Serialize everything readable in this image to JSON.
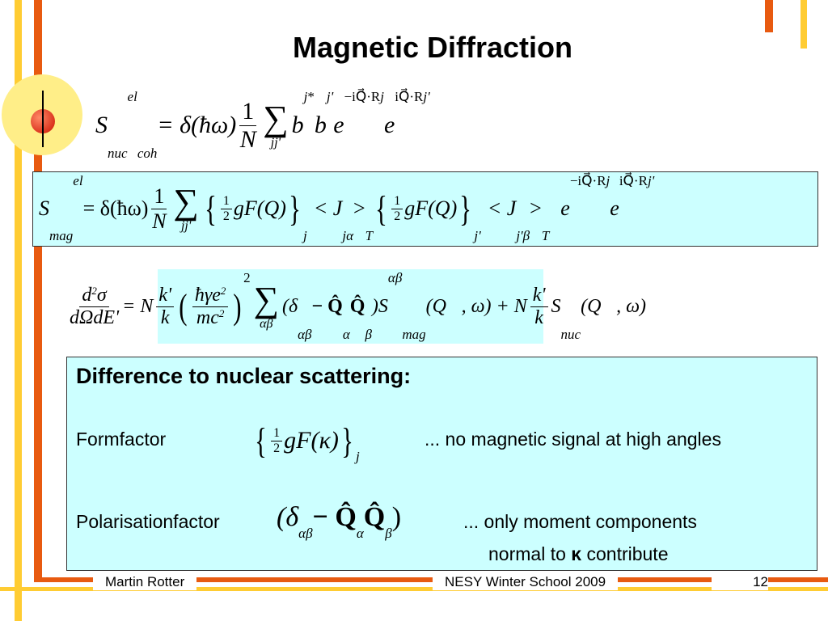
{
  "title": "Magnetic Diffraction",
  "formulas": [
    [
      "S",
      "nuc",
      "el",
      "coh",
      "= δ(ħω)",
      "1",
      "N",
      "∑",
      "jj'",
      "b",
      "j",
      "*",
      "b",
      "j'",
      "e",
      "−iQ⃗·R",
      "j",
      "e",
      "iQ⃗·R",
      "j'"
    ],
    [
      "S",
      "mag",
      "el",
      "= δ(ħω)",
      "1",
      "N",
      "∑",
      "jj'",
      "{",
      "1",
      "2",
      "gF(Q)",
      "}",
      "j",
      "< J",
      "jα",
      ">",
      "T",
      "{",
      "1",
      "2",
      "gF(Q)",
      "}",
      "j'",
      "< J",
      "j'β",
      ">",
      "T",
      "e",
      "−iQ⃗·R",
      "j",
      "e",
      "iQ⃗·R",
      "j'"
    ],
    [
      "d",
      "2",
      "σ",
      "dΩdE'",
      "= N",
      "k'",
      "k",
      "(",
      "ħγe",
      "2",
      "mc",
      "2",
      ")",
      "2",
      "∑",
      "αβ",
      "(δ",
      "αβ",
      "− Q̂",
      "α",
      "Q̂",
      "β",
      ")S",
      "αβ",
      "mag",
      "(Q⃗, ω) + N",
      "k'",
      "k",
      "S",
      "nuc",
      "(Q⃗, ω)"
    ]
  ],
  "box": {
    "heading": "Difference to nuclear scattering:",
    "formfactor": {
      "label": "Formfactor",
      "formula": [
        "{",
        "1",
        "2",
        "gF(κ)",
        "}",
        "j"
      ],
      "note": "... no magnetic signal at high angles"
    },
    "polarisation": {
      "label": "Polarisationfactor",
      "formula": [
        "(δ",
        "αβ",
        "− Q̂",
        "α",
        "Q̂",
        "β",
        ")"
      ],
      "note": "... only moment components",
      "note2": [
        "normal to ",
        "κ",
        " contribute"
      ]
    }
  },
  "footer": {
    "author": "Martin Rotter",
    "event": "NESY Winter School 2009",
    "page": "12"
  }
}
